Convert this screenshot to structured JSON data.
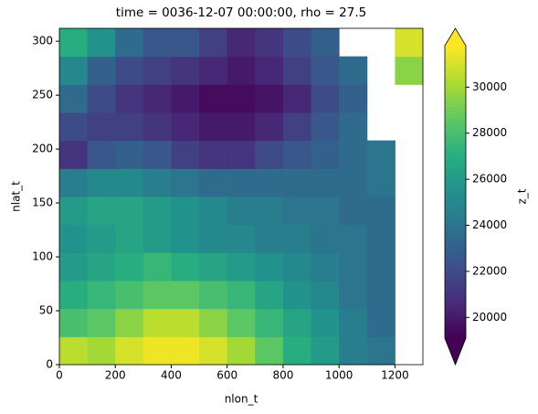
{
  "chart_data": {
    "type": "heatmap",
    "title": "time = 0036-12-07 00:00:00, rho = 27.5",
    "x_label": "nlon_t",
    "y_label": "nlat_t",
    "colorbar_label": "z_t",
    "colormap": "viridis",
    "x_edges": [
      0,
      100,
      200,
      300,
      400,
      500,
      600,
      700,
      800,
      900,
      1000,
      1100,
      1200,
      1300
    ],
    "y_edges": [
      0,
      26,
      52,
      78,
      104,
      130,
      156,
      182,
      208,
      234,
      260,
      286,
      312
    ],
    "z": [
      [
        30500,
        30000,
        31000,
        31500,
        31500,
        31000,
        30000,
        28500,
        27000,
        26000,
        24500,
        24000,
        null
      ],
      [
        28000,
        28500,
        29500,
        30500,
        30500,
        29500,
        28500,
        27500,
        26500,
        25500,
        24500,
        23500,
        null
      ],
      [
        27000,
        27500,
        28000,
        28500,
        28500,
        28000,
        27500,
        26500,
        25500,
        25000,
        24000,
        23500,
        null
      ],
      [
        26000,
        26500,
        27000,
        27500,
        27000,
        26500,
        26000,
        25500,
        25000,
        24500,
        24000,
        23500,
        null
      ],
      [
        25500,
        26000,
        26500,
        26000,
        25500,
        25000,
        25000,
        24500,
        24500,
        24000,
        24000,
        23500,
        null
      ],
      [
        26000,
        26500,
        26500,
        26000,
        25500,
        25000,
        24500,
        24500,
        24000,
        24000,
        23500,
        23500,
        null
      ],
      [
        24500,
        25000,
        25000,
        24500,
        24000,
        23500,
        23500,
        23500,
        23500,
        23500,
        23500,
        24000,
        null
      ],
      [
        21000,
        22500,
        23000,
        22500,
        21500,
        21000,
        21000,
        22000,
        22500,
        23000,
        23500,
        24000,
        null
      ],
      [
        22000,
        21500,
        21500,
        21000,
        20500,
        20000,
        20000,
        20500,
        21500,
        22500,
        23500,
        null,
        null
      ],
      [
        23500,
        22000,
        21000,
        20500,
        20000,
        19500,
        19500,
        19800,
        20500,
        22000,
        23000,
        null,
        null
      ],
      [
        25000,
        23000,
        22000,
        21500,
        21000,
        20500,
        20000,
        20500,
        21500,
        22500,
        23500,
        null,
        29500
      ],
      [
        27000,
        25500,
        23500,
        22500,
        22500,
        21500,
        20500,
        21000,
        22000,
        23000,
        null,
        null,
        31000
      ]
    ],
    "xlim": [
      0,
      1300
    ],
    "ylim": [
      0,
      312
    ],
    "clim": [
      19100,
      31800
    ],
    "xticks": [
      0,
      200,
      400,
      600,
      800,
      1000,
      1200
    ],
    "yticks": [
      0,
      50,
      100,
      150,
      200,
      250,
      300
    ],
    "cticks": [
      20000,
      22000,
      24000,
      26000,
      28000,
      30000
    ]
  }
}
